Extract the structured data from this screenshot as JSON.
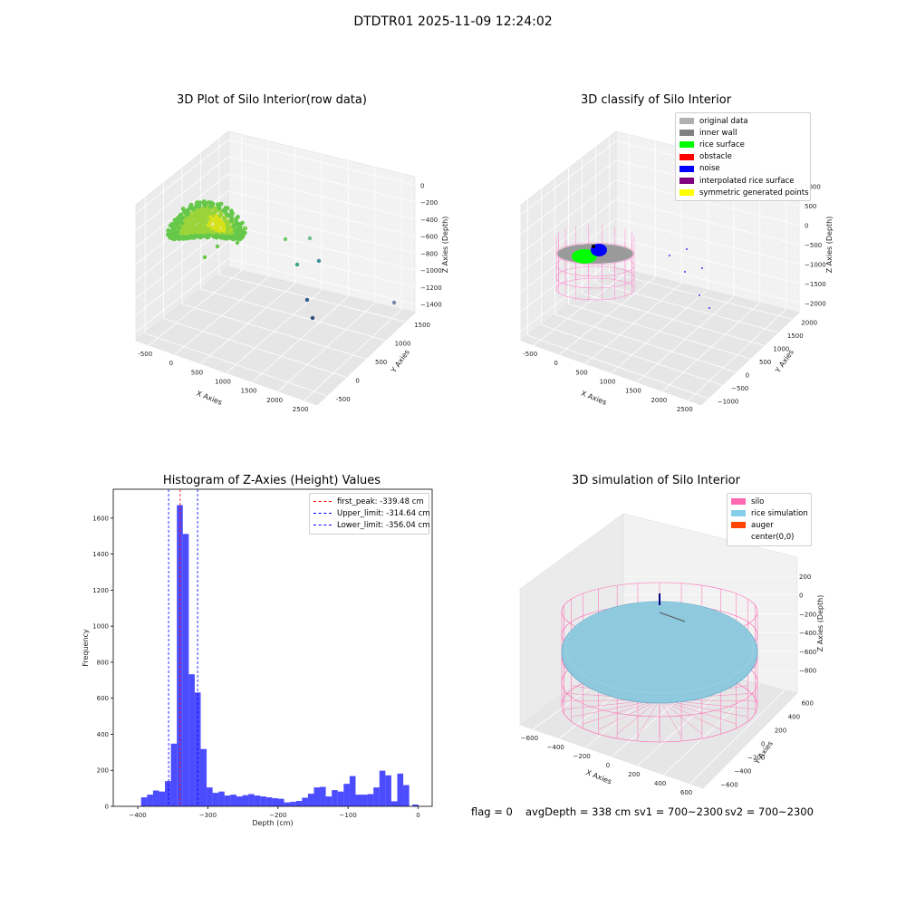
{
  "suptitle": "DTDTR01 2025-11-09 12:24:02",
  "chart_data": [
    {
      "type": "scatter3d",
      "title": "3D Plot of Silo Interior(row data)",
      "xlabel": "X Axies",
      "ylabel": "Y Axies",
      "zlabel": "Z Axies (Depth)",
      "xticks": [
        "-500",
        "0",
        "500",
        "1000",
        "1500",
        "2000",
        "2500"
      ],
      "yticks": [
        "-500",
        "0",
        "500",
        "1000",
        "1500"
      ],
      "zticks": [
        "0",
        "−200",
        "−400",
        "−600",
        "−800",
        "−1000",
        "−1200",
        "−1400"
      ],
      "grid": true
    },
    {
      "type": "scatter3d",
      "title": "3D classify of Silo Interior",
      "xlabel": "X Axies",
      "ylabel": "Y Axies",
      "zlabel": "Z Axies (Depth)",
      "xticks": [
        "-500",
        "0",
        "500",
        "1000",
        "1500",
        "2000",
        "2500"
      ],
      "yticks": [
        "−1000",
        "−500",
        "0",
        "500",
        "1000",
        "1500",
        "2000"
      ],
      "zticks": [
        "1000",
        "500",
        "0",
        "−500",
        "−1000",
        "−1500",
        "−2000"
      ],
      "legend_position": "top-right",
      "legend": [
        {
          "label": "original data",
          "color": "#b0b0b0"
        },
        {
          "label": "inner wall",
          "color": "#808080"
        },
        {
          "label": "rice surface",
          "color": "#00ff00"
        },
        {
          "label": "obstacle",
          "color": "#ff0000"
        },
        {
          "label": "noise",
          "color": "#0000ff"
        },
        {
          "label": "interpolated rice surface",
          "color": "#800080"
        },
        {
          "label": "symmetric generated points",
          "color": "#ffff00"
        }
      ],
      "grid": true
    },
    {
      "type": "bar",
      "title": "Histogram of Z-Axies (Height) Values",
      "xlabel": "Depth (cm)",
      "ylabel": "Frequency",
      "xlim": [
        -435,
        20
      ],
      "ylim": [
        0,
        1760
      ],
      "xticks": [
        -400,
        -300,
        -200,
        -100,
        0
      ],
      "xtick_labels": [
        "−400",
        "−300",
        "−200",
        "−100",
        "0"
      ],
      "yticks": [
        0,
        200,
        400,
        600,
        800,
        1000,
        1200,
        1400,
        1600
      ],
      "bar_color": "#0000ff",
      "bin_width": 8.5,
      "bins": [
        {
          "x": -391,
          "y": 50
        },
        {
          "x": -382.5,
          "y": 65
        },
        {
          "x": -374,
          "y": 88
        },
        {
          "x": -365.5,
          "y": 82
        },
        {
          "x": -357,
          "y": 140
        },
        {
          "x": -348.5,
          "y": 348
        },
        {
          "x": -340,
          "y": 1672
        },
        {
          "x": -331.5,
          "y": 1512
        },
        {
          "x": -323,
          "y": 733
        },
        {
          "x": -314.5,
          "y": 632
        },
        {
          "x": -306,
          "y": 318
        },
        {
          "x": -297.5,
          "y": 105
        },
        {
          "x": -289,
          "y": 75
        },
        {
          "x": -280.5,
          "y": 82
        },
        {
          "x": -272,
          "y": 60
        },
        {
          "x": -263.5,
          "y": 65
        },
        {
          "x": -255,
          "y": 55
        },
        {
          "x": -246.5,
          "y": 62
        },
        {
          "x": -238,
          "y": 68
        },
        {
          "x": -229.5,
          "y": 60
        },
        {
          "x": -221,
          "y": 55
        },
        {
          "x": -212.5,
          "y": 50
        },
        {
          "x": -204,
          "y": 45
        },
        {
          "x": -195.5,
          "y": 42
        },
        {
          "x": -187,
          "y": 22
        },
        {
          "x": -178.5,
          "y": 25
        },
        {
          "x": -170,
          "y": 30
        },
        {
          "x": -161.5,
          "y": 48
        },
        {
          "x": -153,
          "y": 70
        },
        {
          "x": -144.5,
          "y": 105
        },
        {
          "x": -136,
          "y": 108
        },
        {
          "x": -127.5,
          "y": 55
        },
        {
          "x": -119,
          "y": 90
        },
        {
          "x": -110.5,
          "y": 82
        },
        {
          "x": -102,
          "y": 125
        },
        {
          "x": -93.5,
          "y": 168
        },
        {
          "x": -85,
          "y": 65
        },
        {
          "x": -76.5,
          "y": 65
        },
        {
          "x": -68,
          "y": 68
        },
        {
          "x": -59.5,
          "y": 105
        },
        {
          "x": -51,
          "y": 198
        },
        {
          "x": -42.5,
          "y": 172
        },
        {
          "x": -34,
          "y": 28
        },
        {
          "x": -25.5,
          "y": 182
        },
        {
          "x": -17,
          "y": 118
        },
        {
          "x": -4,
          "y": 10
        }
      ],
      "vlines": [
        {
          "x": -339.48,
          "color": "#ff0000",
          "label": "first_peak: -339.48 cm"
        },
        {
          "x": -314.64,
          "color": "#0000ff",
          "label": "Upper_limit: -314.64 cm"
        },
        {
          "x": -356.04,
          "color": "#0000ff",
          "label": "Lower_limit: -356.04 cm"
        }
      ],
      "legend_position": "top-right"
    },
    {
      "type": "surface3d",
      "title": "3D simulation of Silo Interior",
      "xlabel": "X Axies",
      "ylabel": "Y Axies",
      "zlabel": "Z Axies (Depth)",
      "xticks": [
        "−600",
        "−400",
        "−200",
        "0",
        "200",
        "400",
        "600"
      ],
      "yticks": [
        "−600",
        "−400",
        "−200",
        "0",
        "200",
        "400",
        "600"
      ],
      "zticks": [
        "200",
        "0",
        "−200",
        "−400",
        "−600",
        "−800"
      ],
      "legend_position": "top-right",
      "legend": [
        {
          "label": "silo",
          "color": "#ff69b4"
        },
        {
          "label": "rice simulation",
          "color": "#87ceeb"
        },
        {
          "label": "auger",
          "color": "#ff4500"
        },
        {
          "label": "center(0,0)",
          "color": "#ffffff"
        }
      ],
      "grid": true
    }
  ],
  "footer": {
    "flag": "flag = 0",
    "avg": "avgDepth = 338 cm",
    "sv1": "sv1 = 700~2300",
    "sv2": "sv2 = 700~2300"
  }
}
